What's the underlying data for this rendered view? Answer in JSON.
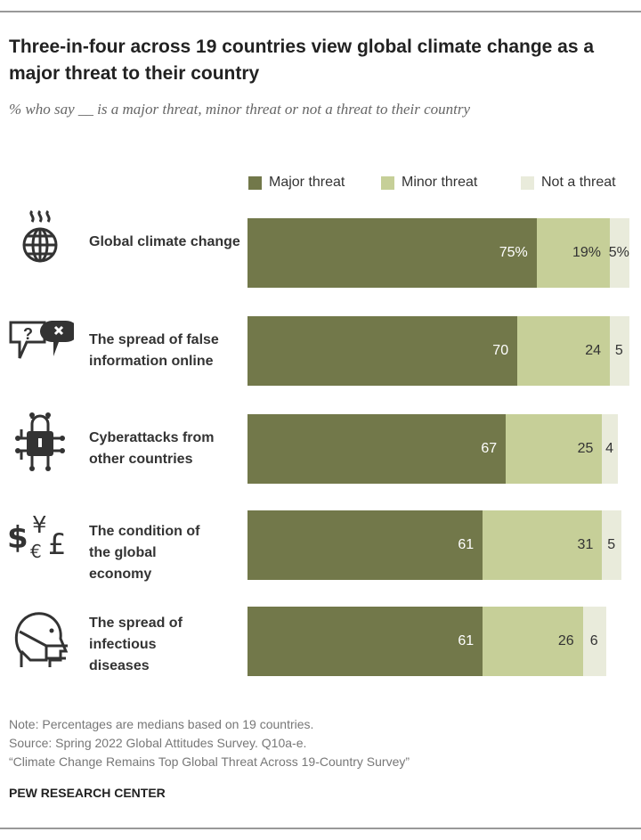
{
  "chart_data": {
    "type": "bar",
    "orientation": "horizontal",
    "stacked": true,
    "title": "Three-in-four across 19 countries view global climate change as a major threat to their country",
    "subtitle": "% who say __ is a major threat, minor threat or not a threat to their country",
    "categories": [
      "Global climate change",
      "The spread of false information online",
      "Cyberattacks from other countries",
      "The condition of the global economy",
      "The spread of infectious diseases"
    ],
    "icons": [
      "globe-heat-icon",
      "speech-bubbles-question-x-icon",
      "lock-circuit-icon",
      "currency-symbols-icon",
      "face-mask-head-icon"
    ],
    "series": [
      {
        "name": "Major threat",
        "values": [
          75,
          70,
          67,
          61,
          61
        ],
        "labels": [
          "75%",
          "70",
          "67",
          "61",
          "61"
        ],
        "color": "#72784a"
      },
      {
        "name": "Minor threat",
        "values": [
          19,
          24,
          25,
          31,
          26
        ],
        "labels": [
          "19%",
          "24",
          "25",
          "31",
          "26"
        ],
        "color": "#c6cf98"
      },
      {
        "name": "Not a threat",
        "values": [
          5,
          5,
          4,
          5,
          6
        ],
        "labels": [
          "5%",
          "5",
          "4",
          "5",
          "6"
        ],
        "color": "#e9ebdb"
      }
    ],
    "xlim": [
      0,
      100
    ],
    "grid": false,
    "legend": "top-right",
    "notes": [
      "Note: Percentages are medians based on 19 countries.",
      "Source: Spring 2022 Global Attitudes Survey. Q10a-e.",
      "“Climate Change Remains Top Global Threat Across 19-Country Survey”"
    ],
    "source": "PEW RESEARCH CENTER"
  }
}
